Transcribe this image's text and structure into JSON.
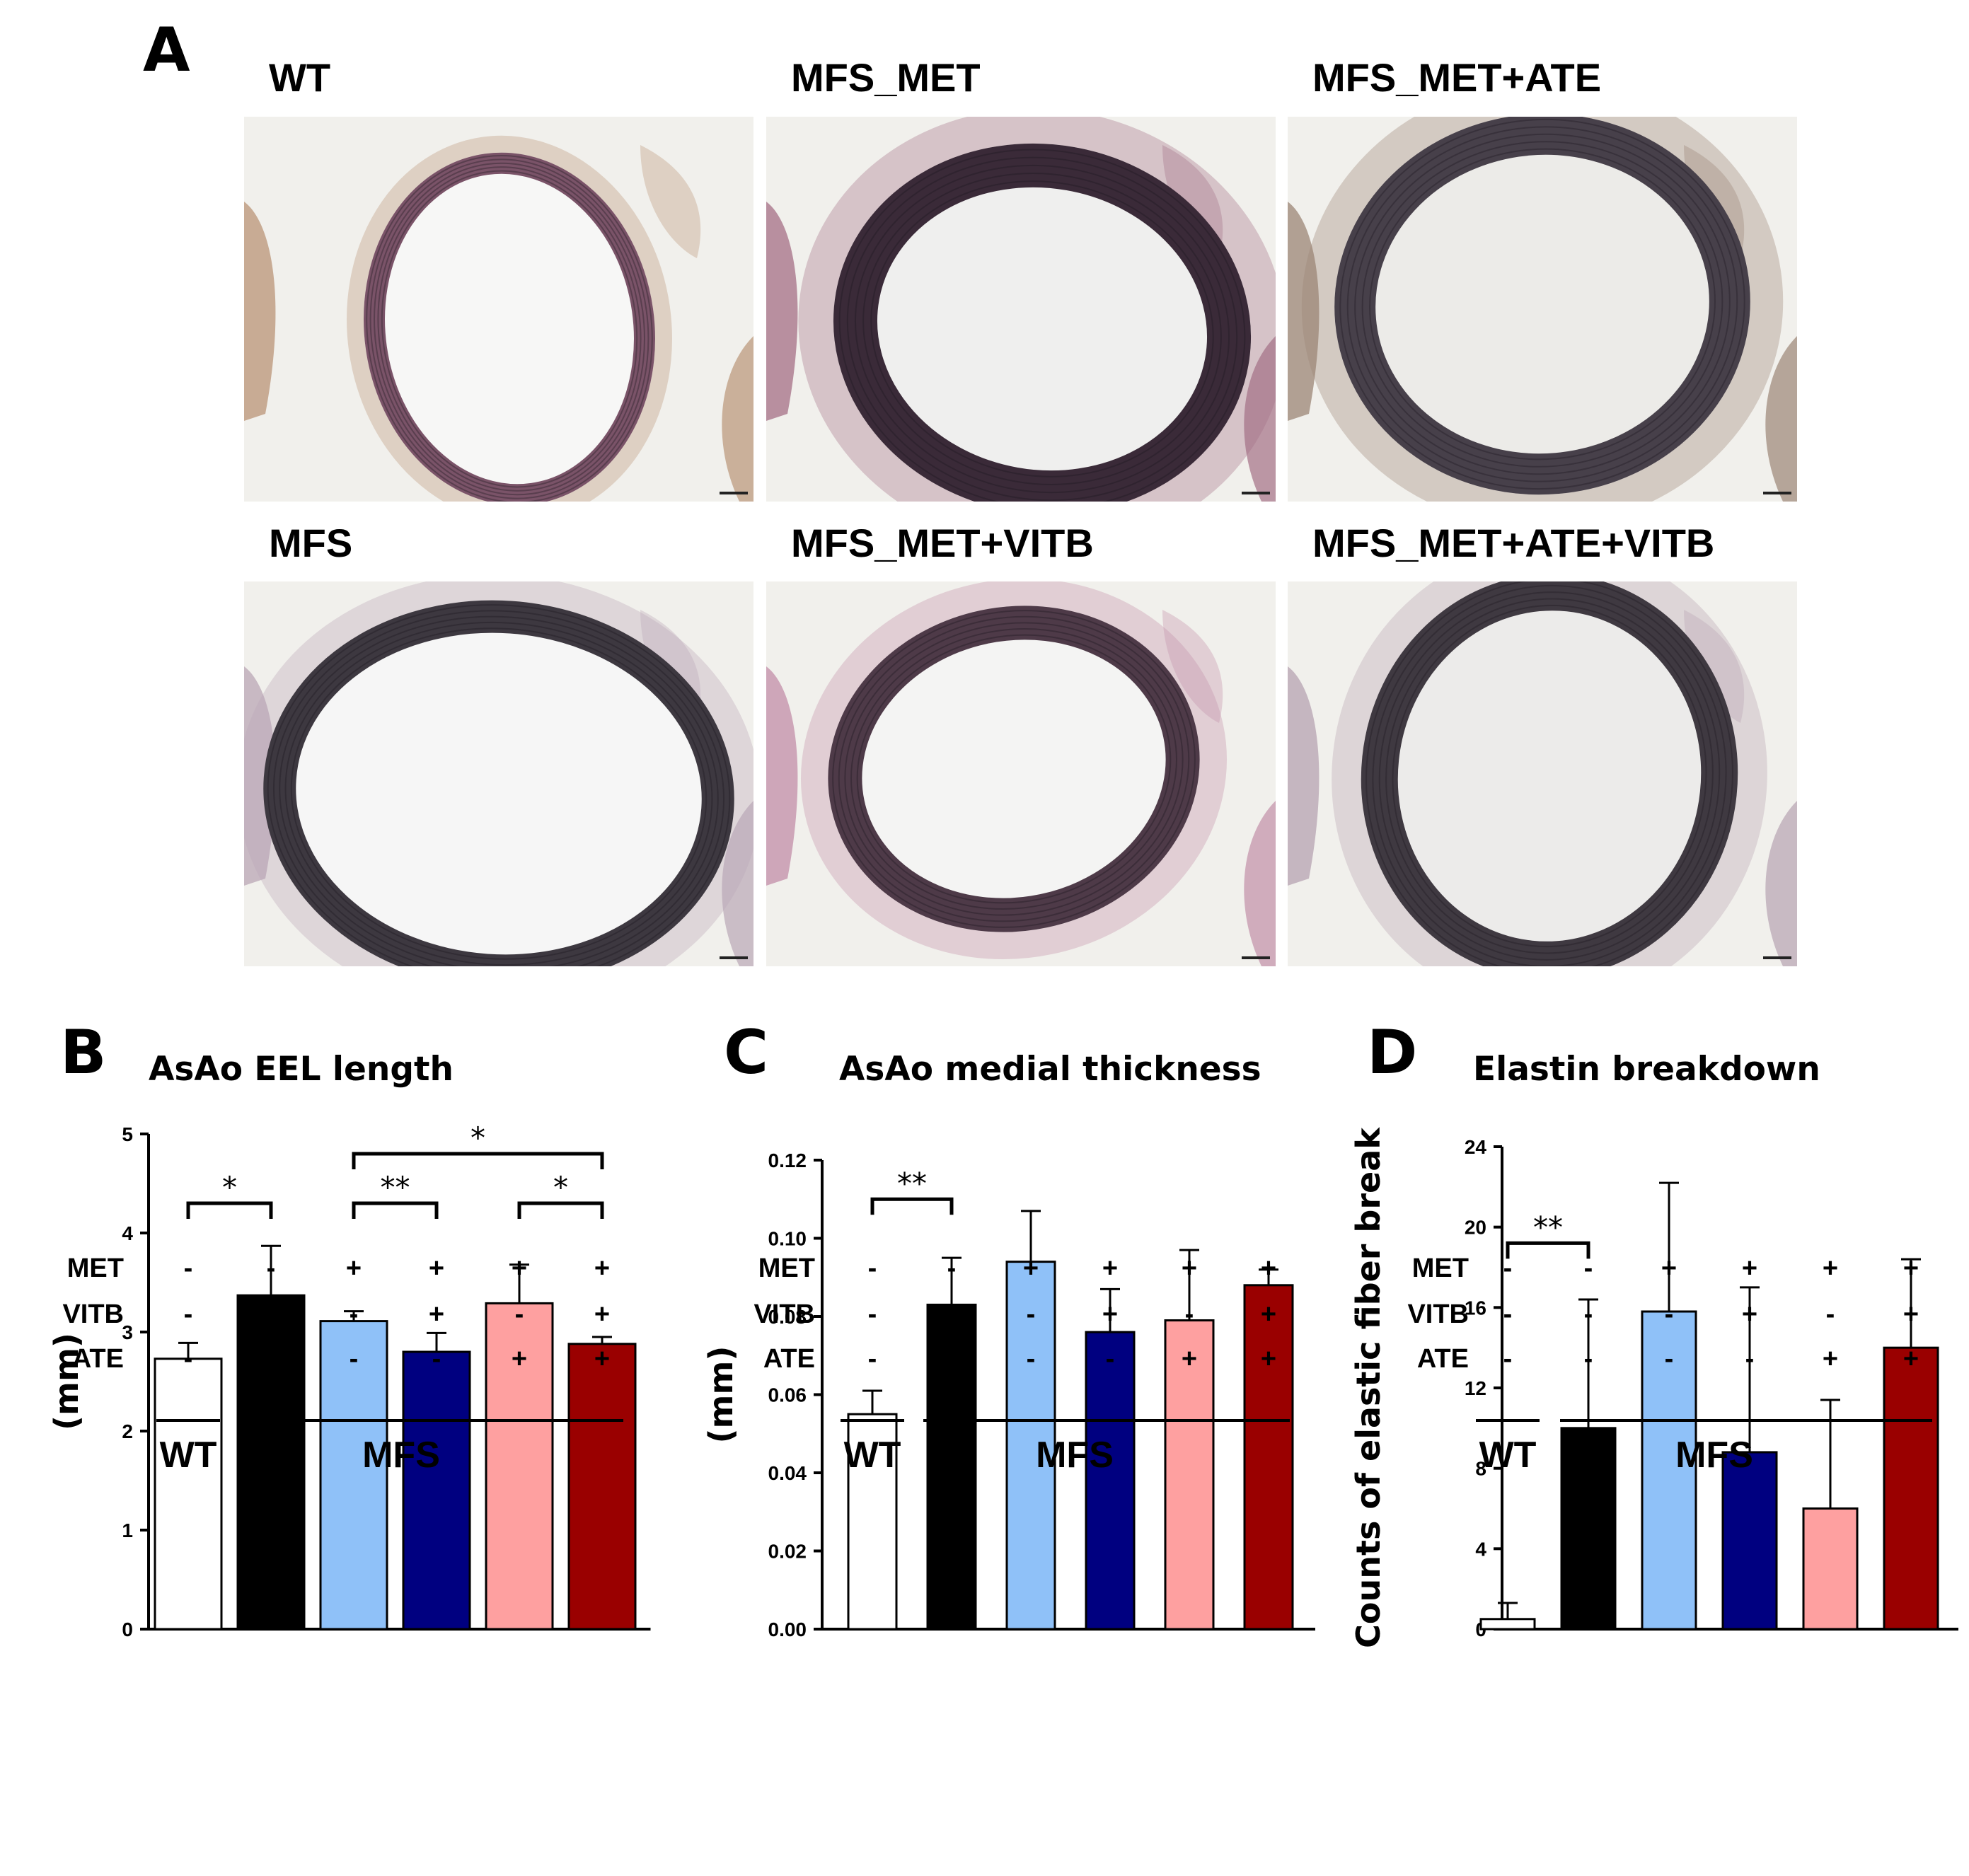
{
  "panel_a": {
    "letter": "A",
    "images": [
      {
        "title": "WT",
        "lumen": "#f7f7f6",
        "wall": "#7a5368",
        "tissue": "#b99477"
      },
      {
        "title": "MFS_MET",
        "lumen": "#efefee",
        "wall": "#3a2a38",
        "tissue": "#a46f86"
      },
      {
        "title": "MFS_MET+ATE",
        "lumen": "#ecebe8",
        "wall": "#47404a",
        "tissue": "#9b8576"
      },
      {
        "title": "MFS",
        "lumen": "#f6f6f6",
        "wall": "#3d3840",
        "tissue": "#b9a7b6"
      },
      {
        "title": "MFS_MET+VITB",
        "lumen": "#f4f4f3",
        "wall": "#4e3a48",
        "tissue": "#c28ea8"
      },
      {
        "title": "MFS_MET+ATE+VITB",
        "lumen": "#ecebea",
        "wall": "#3f3941",
        "tissue": "#b6a3b2"
      }
    ]
  },
  "factor_rows": [
    "MET",
    "VITB",
    "ATE"
  ],
  "groups": {
    "wt": "WT",
    "mfs": "MFS"
  },
  "bar_colors": [
    "#ffffff",
    "#000000",
    "#8fc1f8",
    "#000080",
    "#fea0a0",
    "#9a0000"
  ],
  "factors": [
    {
      "MET": "-",
      "VITB": "-",
      "ATE": "-"
    },
    {
      "MET": "-",
      "VITB": "-",
      "ATE": "-"
    },
    {
      "MET": "+",
      "VITB": "-",
      "ATE": "-"
    },
    {
      "MET": "+",
      "VITB": "+",
      "ATE": "-"
    },
    {
      "MET": "+",
      "VITB": "-",
      "ATE": "+"
    },
    {
      "MET": "+",
      "VITB": "+",
      "ATE": "+"
    }
  ],
  "chart_data": [
    {
      "panel": "B",
      "type": "bar",
      "title": "AsAo EEL length",
      "ylabel": "(mm)",
      "ylim": [
        0,
        5
      ],
      "yticks": [
        "0",
        "1",
        "2",
        "3",
        "4",
        "5"
      ],
      "values": [
        2.73,
        3.37,
        3.11,
        2.8,
        3.29,
        2.88
      ],
      "errors": [
        0.16,
        0.5,
        0.1,
        0.19,
        0.39,
        0.07
      ],
      "significance": [
        {
          "from": 0,
          "to": 1,
          "label": "*",
          "y": 4.3
        },
        {
          "from": 2,
          "to": 3,
          "label": "**",
          "y": 4.3
        },
        {
          "from": 4,
          "to": 5,
          "label": "*",
          "y": 4.3
        },
        {
          "from": 2,
          "to": 5,
          "label": "*",
          "y": 4.8
        }
      ]
    },
    {
      "panel": "C",
      "type": "bar",
      "title": "AsAo medial thickness",
      "ylabel": "(mm)",
      "ylim": [
        0,
        0.12
      ],
      "yticks": [
        "0.00",
        "0.02",
        "0.04",
        "0.06",
        "0.08",
        "0.10",
        "0.12"
      ],
      "values": [
        0.055,
        0.083,
        0.094,
        0.076,
        0.079,
        0.088
      ],
      "errors": [
        0.006,
        0.012,
        0.013,
        0.011,
        0.018,
        0.004
      ],
      "significance": [
        {
          "from": 0,
          "to": 1,
          "label": "**",
          "y": 0.11
        }
      ]
    },
    {
      "panel": "D",
      "type": "bar",
      "title": "Elastin breakdown",
      "ylabel": "Counts of elastic fiber break",
      "ylim": [
        0,
        24
      ],
      "yticks": [
        "0",
        "4",
        "8",
        "12",
        "16",
        "20",
        "24"
      ],
      "values": [
        0.5,
        10.0,
        15.8,
        8.8,
        6.0,
        14.0
      ],
      "errors": [
        0.8,
        6.4,
        6.4,
        8.2,
        5.4,
        4.4
      ],
      "significance": [
        {
          "from": 0,
          "to": 1,
          "label": "**",
          "y": 19.2
        }
      ]
    }
  ]
}
